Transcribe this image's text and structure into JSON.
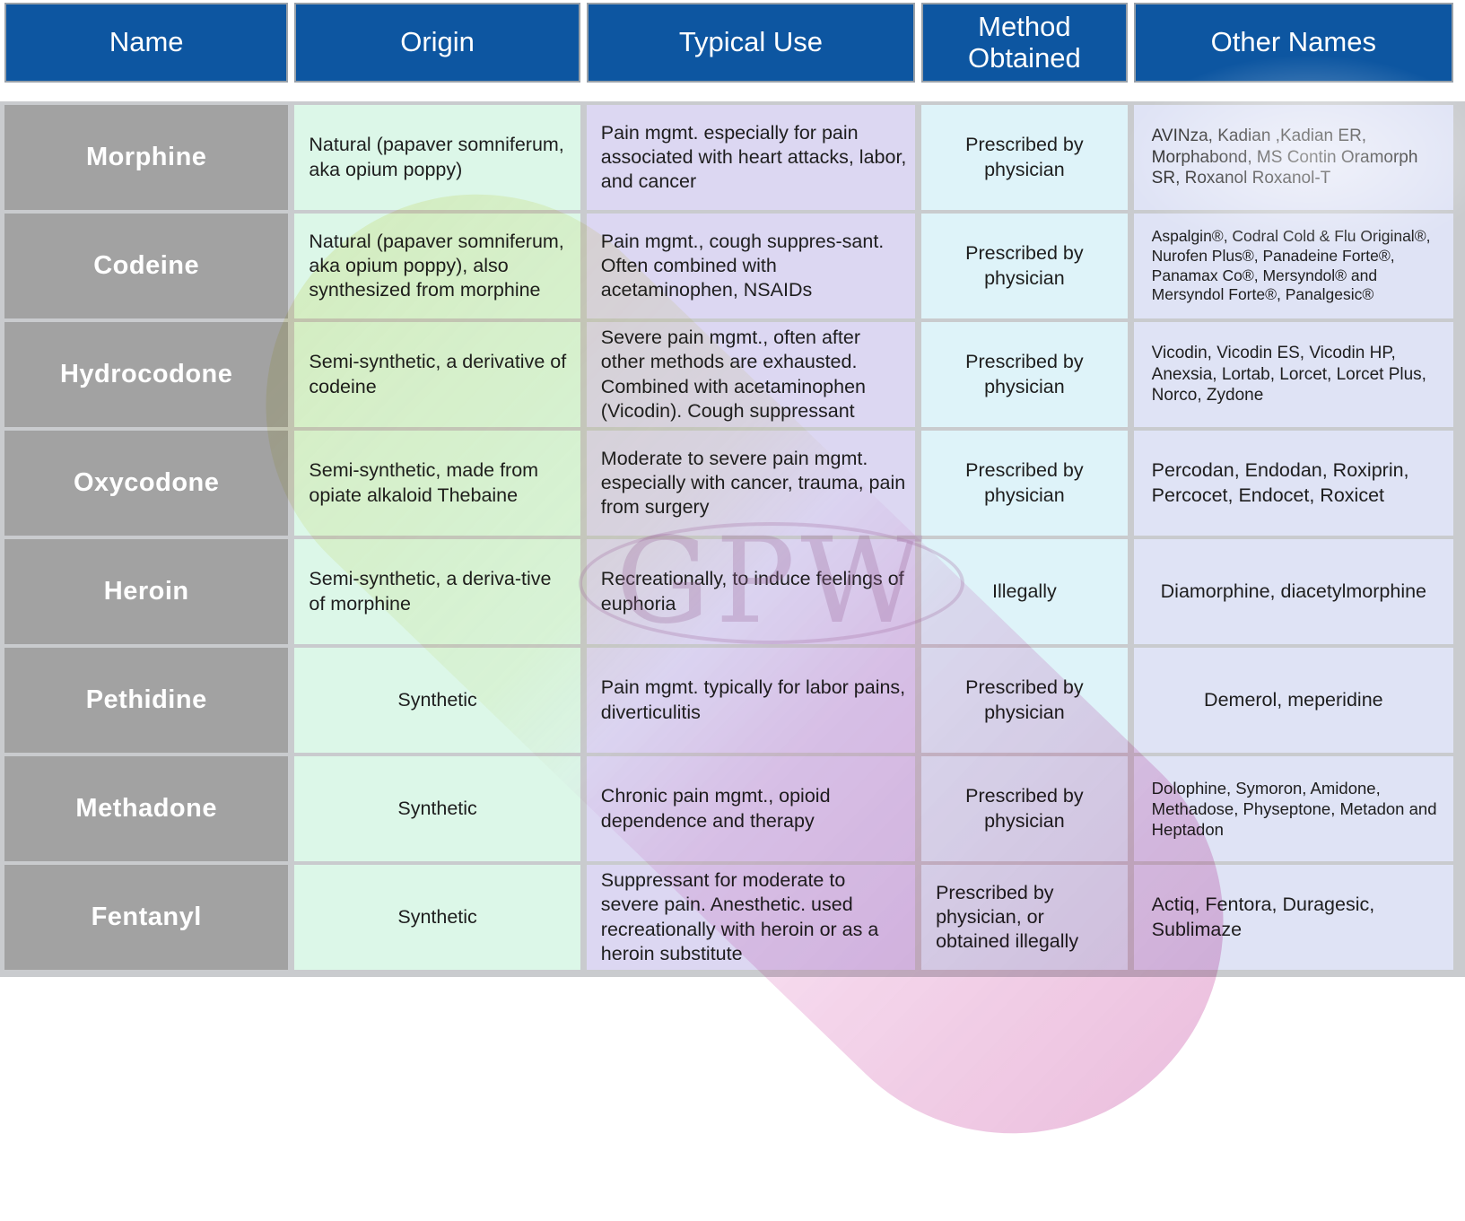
{
  "header": {
    "columns": [
      "Name",
      "Origin",
      "Typical Use",
      "Method Obtained",
      "Other Names"
    ]
  },
  "rows": [
    {
      "name": "Morphine",
      "origin": "Natural (papaver somniferum, aka opium poppy)",
      "use": "Pain mgmt. especially for pain associated with heart attacks, labor, and cancer",
      "method": "Prescribed by physician",
      "other": "AVINza, Kadian ,Kadian ER, Morphabond, MS Contin Oramorph SR, Roxanol Roxanol-T"
    },
    {
      "name": "Codeine",
      "origin": "Natural (papaver somniferum, aka opium poppy), also synthesized from morphine",
      "use": "Pain mgmt., cough suppres-sant. Often combined with acetaminophen, NSAIDs",
      "method": "Prescribed by physician",
      "other": "Aspalgin®,  Codral Cold & Flu Original®,  Nurofen Plus®, Panadeine Forte®,  Panamax Co®, Mersyndol® and Mersyndol Forte®, Panalgesic®"
    },
    {
      "name": "Hydrocodone",
      "origin": "Semi-synthetic, a derivative of codeine",
      "use": "Severe pain mgmt., often after other methods are exhausted. Combined with acetaminophen (Vicodin). Cough suppressant",
      "method": "Prescribed by physician",
      "other": "Vicodin, Vicodin ES, Vicodin HP, Anexsia, Lortab, Lorcet, Lorcet Plus, Norco, Zydone"
    },
    {
      "name": "Oxycodone",
      "origin": "Semi-synthetic, made from opiate alkaloid Thebaine",
      "use": "Moderate to severe pain mgmt. especially with cancer, trauma, pain from surgery",
      "method": "Prescribed by physician",
      "other": "Percodan, Endodan, Roxiprin, Percocet, Endocet, Roxicet"
    },
    {
      "name": "Heroin",
      "origin": "Semi-synthetic, a deriva-tive of morphine",
      "use": "Recreationally, to induce feelings of euphoria",
      "method": "Illegally",
      "other": "Diamorphine, diacetylmorphine"
    },
    {
      "name": "Pethidine",
      "origin": "Synthetic",
      "use": "Pain mgmt. typically for labor pains, diverticulitis",
      "method": "Prescribed by physician",
      "other": "Demerol, meperidine"
    },
    {
      "name": "Methadone",
      "origin": "Synthetic",
      "use": "Chronic pain mgmt.,  opioid dependence and therapy",
      "method": "Prescribed by physician",
      "other": "Dolophine, Symoron, Amidone, Methadose, Physeptone, Metadon and Heptadon"
    },
    {
      "name": "Fentanyl",
      "origin": "Synthetic",
      "use": "Suppressant for moderate to severe pain. Anesthetic. used recreationally with  heroin  or as a heroin substitute",
      "method": "Prescribed by physician, or obtained illegally",
      "other": "Actiq, Fentora, Duragesic, Sublimaze"
    }
  ],
  "watermark": {
    "logo_text": "GPW"
  },
  "colors": {
    "header_blue": "#0d56a1",
    "name_gray": "#a2a2a2",
    "origin_green": "#dcf7e8",
    "use_purple": "#dcd7f2",
    "method_cyan": "#def3f9",
    "other_blue": "#dfe3f5",
    "capsule_yellow": "#e9e79b",
    "capsule_pink": "#ce5fac"
  }
}
